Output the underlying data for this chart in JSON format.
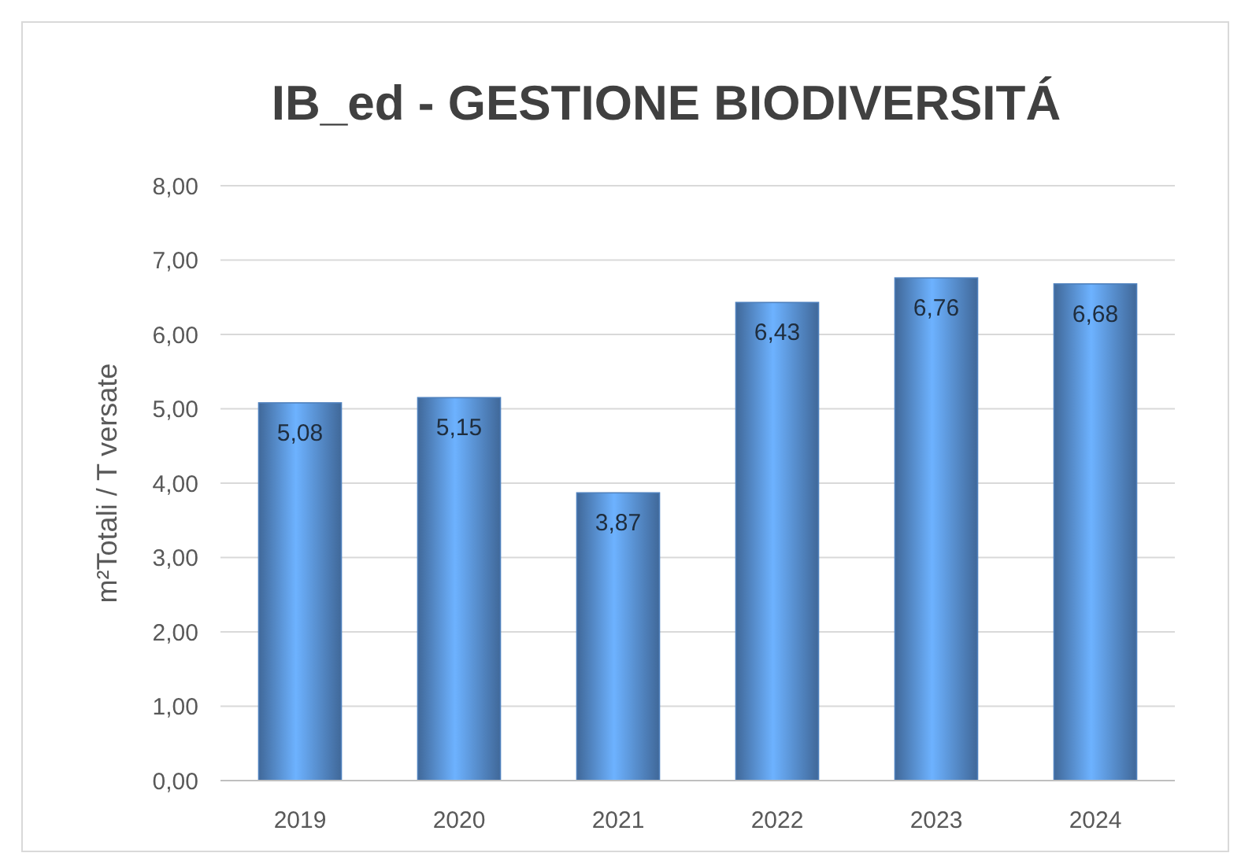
{
  "chart_data": {
    "type": "bar",
    "title": "IB_ed - GESTIONE BIODIVERSITÁ",
    "ylabel": "m²Totali / T versate",
    "categories": [
      "2019",
      "2020",
      "2021",
      "2022",
      "2023",
      "2024"
    ],
    "values": [
      5.08,
      5.15,
      3.87,
      6.43,
      6.76,
      6.68
    ],
    "value_labels": [
      "5,08",
      "5,15",
      "3,87",
      "6,43",
      "6,76",
      "6,68"
    ],
    "color": "#4f81bd",
    "ylim": [
      0,
      8
    ],
    "yticks": [
      {
        "value": 0,
        "label": "0,00"
      },
      {
        "value": 1,
        "label": "1,00"
      },
      {
        "value": 2,
        "label": "2,00"
      },
      {
        "value": 3,
        "label": "3,00"
      },
      {
        "value": 4,
        "label": "4,00"
      },
      {
        "value": 5,
        "label": "5,00"
      },
      {
        "value": 6,
        "label": "6,00"
      },
      {
        "value": 7,
        "label": "7,00"
      },
      {
        "value": 8,
        "label": "8,00"
      }
    ],
    "grid": true
  }
}
